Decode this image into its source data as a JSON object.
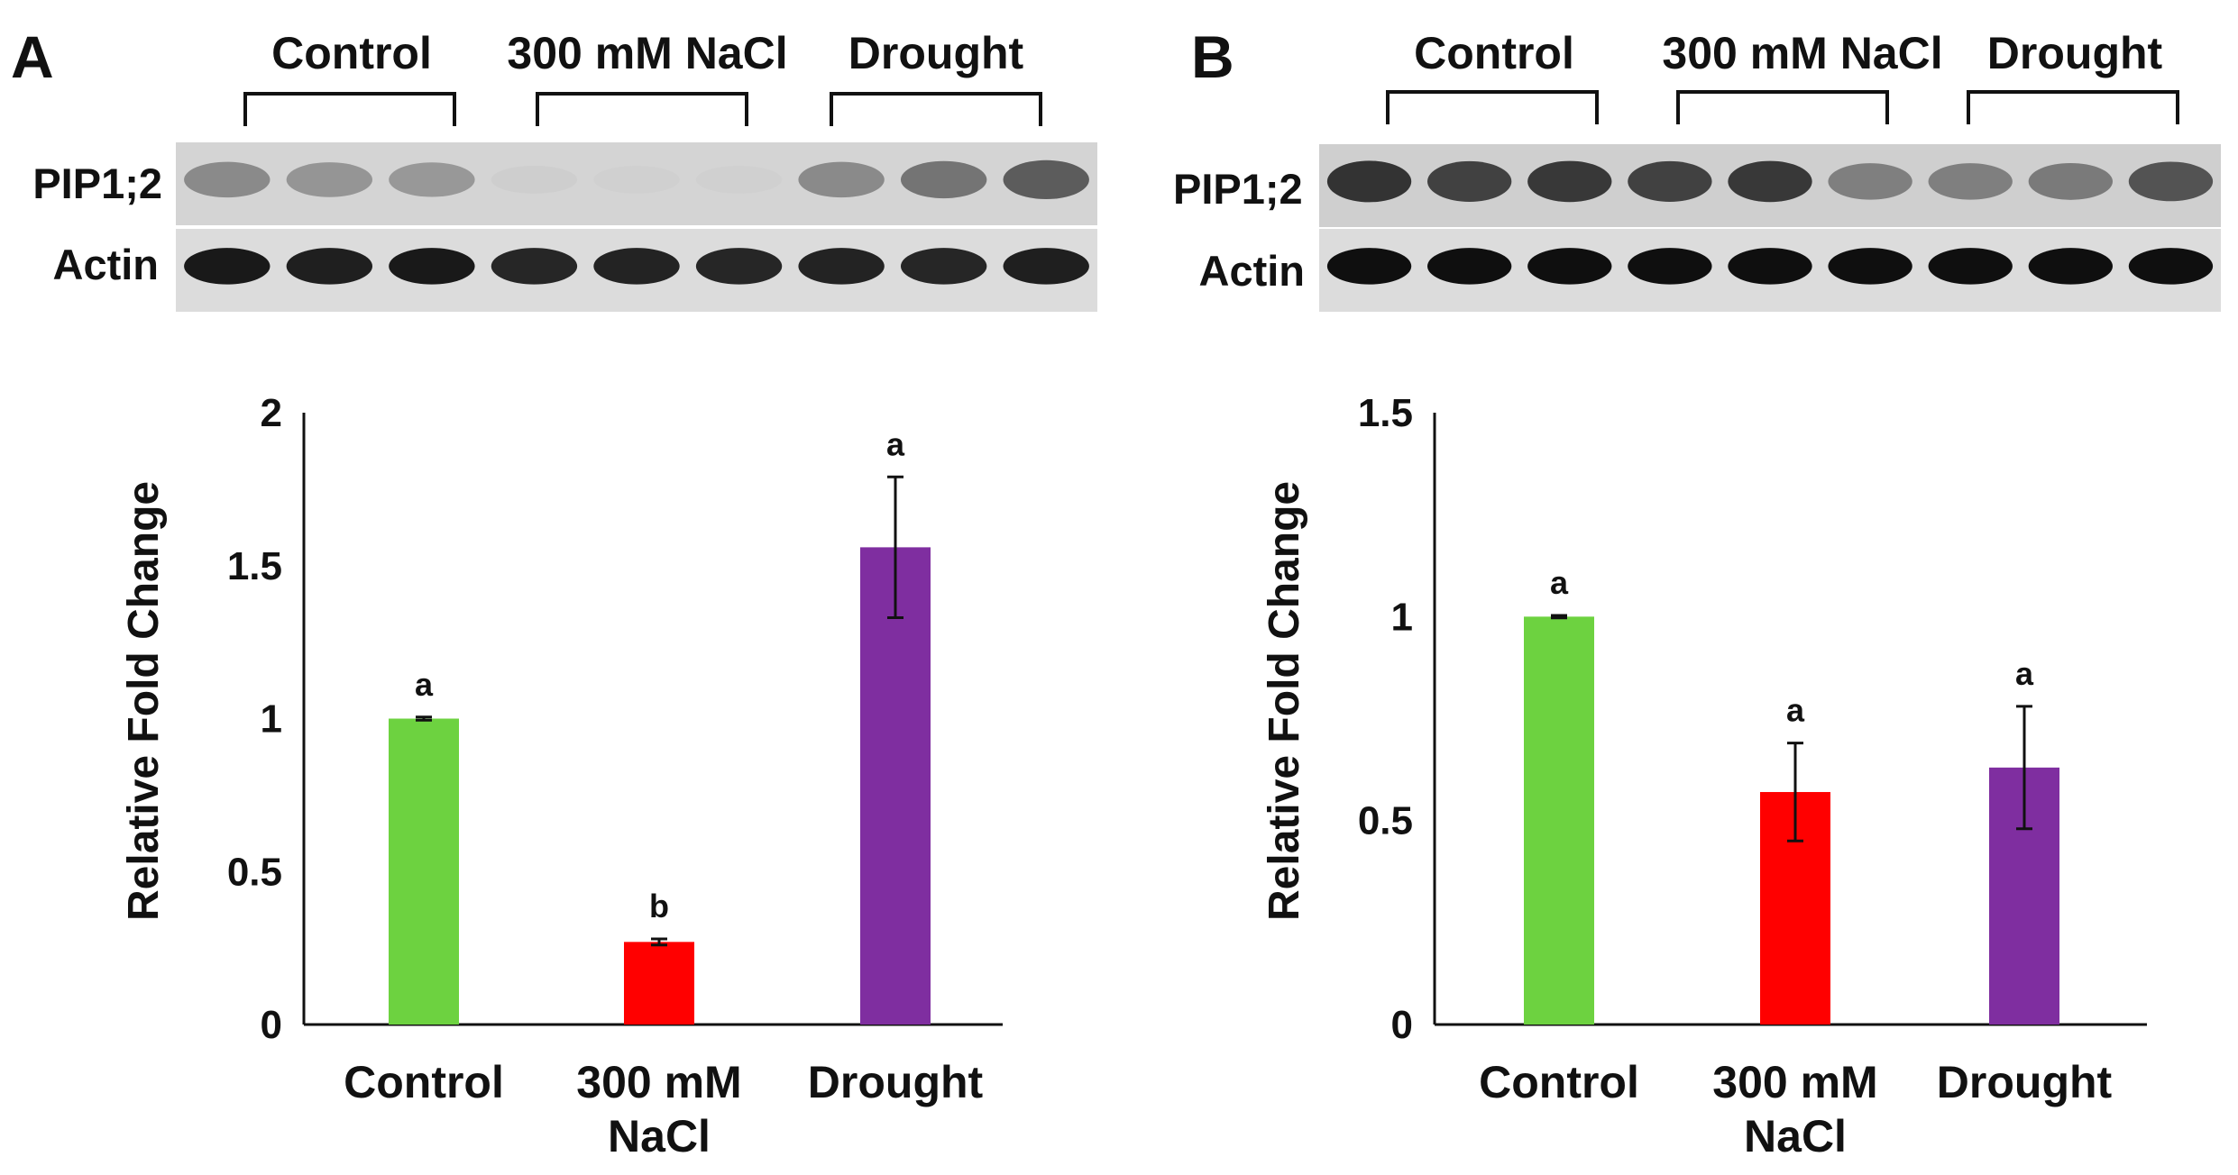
{
  "panels": [
    {
      "letter": "A",
      "conditions": [
        "Control",
        "300 mM NaCl",
        "Drought"
      ],
      "protein": "PIP1;2",
      "loading_control": "Actin",
      "pip_band_intensity": [
        0.55,
        0.5,
        0.48,
        0.08,
        0.07,
        0.07,
        0.55,
        0.65,
        0.75
      ],
      "actin_band_intensity": [
        0.95,
        0.92,
        0.95,
        0.88,
        0.9,
        0.88,
        0.9,
        0.88,
        0.92
      ],
      "blot_background": "#d4d4d4"
    },
    {
      "letter": "B",
      "conditions": [
        "Control",
        "300 mM NaCl",
        "Drought"
      ],
      "protein": "PIP1;2",
      "loading_control": "Actin",
      "pip_band_intensity": [
        0.9,
        0.85,
        0.88,
        0.85,
        0.88,
        0.6,
        0.6,
        0.62,
        0.78
      ],
      "actin_band_intensity": [
        1.0,
        1.0,
        1.0,
        1.0,
        1.0,
        1.0,
        1.0,
        1.0,
        1.0
      ],
      "blot_background": "#cfcfcf"
    }
  ],
  "chart_data": [
    {
      "type": "bar",
      "panel": "A",
      "categories": [
        "Control",
        "300 mM\nNaCl",
        "Drought"
      ],
      "values": [
        1.0,
        0.27,
        1.56
      ],
      "errors": [
        0.005,
        0.01,
        0.23
      ],
      "significance": [
        "a",
        "b",
        "a"
      ],
      "colors": [
        "#6dd240",
        "#ff0000",
        "#7f2ea0"
      ],
      "ylabel": "Relative Fold Change",
      "xlabel": "",
      "ylim": [
        0,
        2
      ],
      "yticks": [
        "0",
        "0.5",
        "1",
        "1.5",
        "2"
      ],
      "grid": false
    },
    {
      "type": "bar",
      "panel": "B",
      "categories": [
        "Control",
        "300 mM\nNaCl",
        "Drought"
      ],
      "values": [
        1.0,
        0.57,
        0.63
      ],
      "errors": [
        0.003,
        0.12,
        0.15
      ],
      "significance": [
        "a",
        "a",
        "a"
      ],
      "colors": [
        "#6dd240",
        "#ff0000",
        "#7f2ea0"
      ],
      "ylabel": "Relative Fold Change",
      "xlabel": "",
      "ylim": [
        0,
        1.5
      ],
      "yticks": [
        "0",
        "0.5",
        "1",
        "1.5"
      ],
      "grid": false
    }
  ]
}
